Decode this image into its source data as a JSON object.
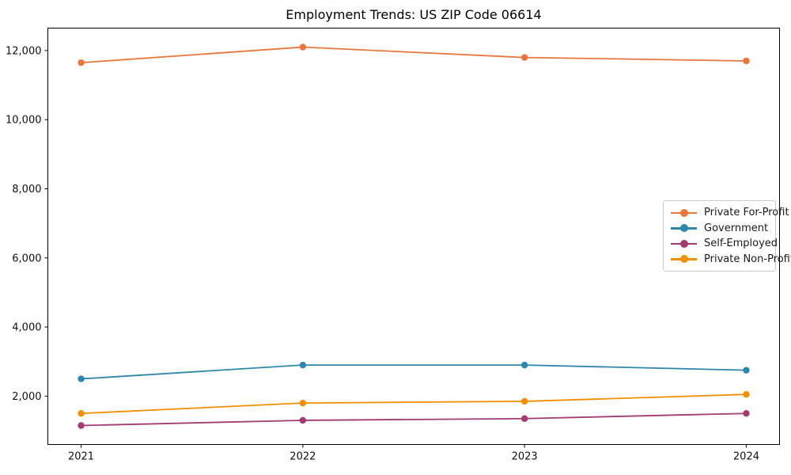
{
  "title": "Employment Trends: US ZIP Code 06614",
  "chart_data": {
    "type": "line",
    "title": "Employment Trends: US ZIP Code 06614",
    "xlabel": "",
    "ylabel": "",
    "x": [
      2021,
      2022,
      2023,
      2024
    ],
    "x_tick_labels": [
      "2021",
      "2022",
      "2023",
      "2024"
    ],
    "y_ticks": [
      2000,
      4000,
      6000,
      8000,
      10000,
      12000
    ],
    "y_tick_labels": [
      "2,000",
      "4,000",
      "6,000",
      "8,000",
      "10,000",
      "12,000"
    ],
    "xlim": [
      2020.85,
      2024.15
    ],
    "ylim": [
      600,
      12650
    ],
    "grid": false,
    "legend_position": "center right",
    "series": [
      {
        "name": "Private For-Profit",
        "color": "#E8773D",
        "values": [
          11650,
          12100,
          11800,
          11700
        ]
      },
      {
        "name": "Government",
        "color": "#2E86AB",
        "values": [
          2500,
          2900,
          2900,
          2750
        ]
      },
      {
        "name": "Self-Employed",
        "color": "#A23B72",
        "values": [
          1150,
          1300,
          1350,
          1500
        ]
      },
      {
        "name": "Private Non-Profit",
        "color": "#F18F01",
        "values": [
          1500,
          1800,
          1850,
          2050
        ]
      }
    ]
  }
}
